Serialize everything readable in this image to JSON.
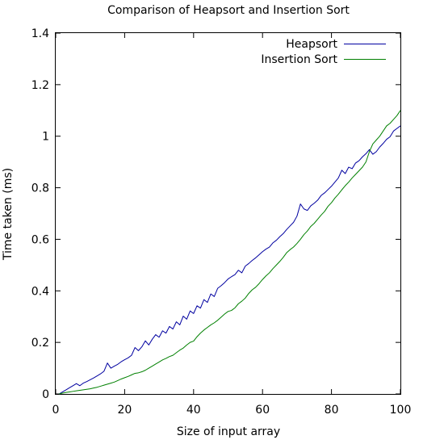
{
  "chart_data": {
    "type": "line",
    "title": "Comparison of Heapsort and Insertion Sort",
    "xlabel": "Size of input array",
    "ylabel": "Time taken (ms)",
    "xlim": [
      0,
      100
    ],
    "ylim": [
      0,
      1.4
    ],
    "x_ticks": [
      "0",
      "20",
      "40",
      "60",
      "80",
      "100"
    ],
    "y_ticks": [
      "0",
      "0.2",
      "0.4",
      "0.6",
      "0.8",
      "1",
      "1.2",
      "1.4"
    ],
    "grid": false,
    "legend": "top-right",
    "series": [
      {
        "name": "Heapsort",
        "color": "#0000a0",
        "x": [
          1,
          2,
          3,
          4,
          5,
          6,
          7,
          8,
          9,
          10,
          11,
          12,
          13,
          14,
          15,
          16,
          17,
          18,
          19,
          20,
          21,
          22,
          23,
          24,
          25,
          26,
          27,
          28,
          29,
          30,
          31,
          32,
          33,
          34,
          35,
          36,
          37,
          38,
          39,
          40,
          41,
          42,
          43,
          44,
          45,
          46,
          47,
          48,
          49,
          50,
          51,
          52,
          53,
          54,
          55,
          56,
          57,
          58,
          59,
          60,
          61,
          62,
          63,
          64,
          65,
          66,
          67,
          68,
          69,
          70,
          71,
          72,
          73,
          74,
          75,
          76,
          77,
          78,
          79,
          80,
          81,
          82,
          83,
          84,
          85,
          86,
          87,
          88,
          89,
          90,
          91,
          92,
          93,
          94,
          95,
          96,
          97,
          98,
          99,
          100
        ],
        "values": [
          0.0,
          0.008,
          0.016,
          0.024,
          0.032,
          0.04,
          0.032,
          0.042,
          0.048,
          0.055,
          0.062,
          0.07,
          0.078,
          0.088,
          0.12,
          0.1,
          0.108,
          0.115,
          0.125,
          0.133,
          0.14,
          0.15,
          0.18,
          0.168,
          0.183,
          0.206,
          0.19,
          0.212,
          0.23,
          0.22,
          0.245,
          0.236,
          0.262,
          0.252,
          0.28,
          0.268,
          0.302,
          0.29,
          0.322,
          0.312,
          0.342,
          0.333,
          0.366,
          0.355,
          0.388,
          0.378,
          0.41,
          0.42,
          0.432,
          0.446,
          0.455,
          0.463,
          0.48,
          0.47,
          0.496,
          0.506,
          0.518,
          0.528,
          0.54,
          0.552,
          0.562,
          0.57,
          0.586,
          0.596,
          0.61,
          0.622,
          0.638,
          0.652,
          0.666,
          0.69,
          0.737,
          0.718,
          0.712,
          0.73,
          0.74,
          0.752,
          0.77,
          0.78,
          0.793,
          0.806,
          0.822,
          0.838,
          0.868,
          0.855,
          0.88,
          0.874,
          0.896,
          0.905,
          0.92,
          0.932,
          0.948,
          0.93,
          0.94,
          0.958,
          0.972,
          0.988,
          0.998,
          1.02,
          1.03,
          1.04
        ]
      },
      {
        "name": "Insertion Sort",
        "color": "#008000",
        "x": [
          1,
          2,
          3,
          4,
          5,
          6,
          7,
          8,
          9,
          10,
          11,
          12,
          13,
          14,
          15,
          16,
          17,
          18,
          19,
          20,
          21,
          22,
          23,
          24,
          25,
          26,
          27,
          28,
          29,
          30,
          31,
          32,
          33,
          34,
          35,
          36,
          37,
          38,
          39,
          40,
          41,
          42,
          43,
          44,
          45,
          46,
          47,
          48,
          49,
          50,
          51,
          52,
          53,
          54,
          55,
          56,
          57,
          58,
          59,
          60,
          61,
          62,
          63,
          64,
          65,
          66,
          67,
          68,
          69,
          70,
          71,
          72,
          73,
          74,
          75,
          76,
          77,
          78,
          79,
          80,
          81,
          82,
          83,
          84,
          85,
          86,
          87,
          88,
          89,
          90,
          91,
          92,
          93,
          94,
          95,
          96,
          97,
          98,
          99,
          100
        ],
        "values": [
          0.0,
          0.003,
          0.006,
          0.008,
          0.01,
          0.012,
          0.014,
          0.016,
          0.018,
          0.02,
          0.023,
          0.026,
          0.03,
          0.034,
          0.038,
          0.042,
          0.046,
          0.052,
          0.058,
          0.063,
          0.068,
          0.074,
          0.08,
          0.082,
          0.086,
          0.092,
          0.1,
          0.108,
          0.116,
          0.124,
          0.132,
          0.138,
          0.145,
          0.15,
          0.16,
          0.17,
          0.178,
          0.19,
          0.2,
          0.205,
          0.222,
          0.236,
          0.248,
          0.258,
          0.268,
          0.276,
          0.286,
          0.298,
          0.31,
          0.32,
          0.324,
          0.334,
          0.35,
          0.36,
          0.372,
          0.39,
          0.404,
          0.414,
          0.428,
          0.444,
          0.458,
          0.47,
          0.486,
          0.5,
          0.514,
          0.53,
          0.548,
          0.56,
          0.57,
          0.584,
          0.6,
          0.618,
          0.632,
          0.65,
          0.662,
          0.678,
          0.694,
          0.708,
          0.728,
          0.742,
          0.76,
          0.775,
          0.792,
          0.808,
          0.822,
          0.838,
          0.852,
          0.866,
          0.88,
          0.9,
          0.94,
          0.97,
          0.985,
          1.0,
          1.02,
          1.04,
          1.05,
          1.065,
          1.08,
          1.1
        ]
      }
    ]
  }
}
